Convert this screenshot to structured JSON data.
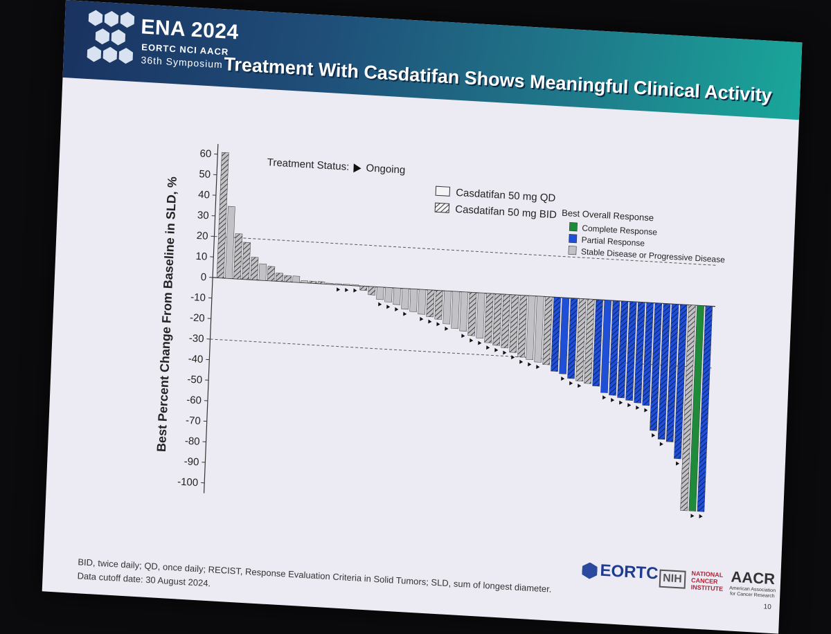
{
  "header": {
    "conference_name": "ENA 2024",
    "conference_orgs": "EORTC  NCI  AACR",
    "symposium": "36th Symposium",
    "slide_title": "Treatment With Casdatifan Shows Meaningful Clinical Activity"
  },
  "footer": {
    "footnote_line1": "BID, twice daily; QD, once daily; RECIST, Response Evaluation Criteria in Solid Tumors; SLD, sum of longest diameter.",
    "footnote_line2": "Data cutoff date: 30 August 2024.",
    "slide_number": "10",
    "logos": {
      "eortc": "EORTC",
      "nih_box": "NIH",
      "nih_line1": "NATIONAL",
      "nih_line2": "CANCER",
      "nih_line3": "INSTITUTE",
      "aacr": "AACR",
      "aacr_sub": "American Association for Cancer Research"
    }
  },
  "colors": {
    "banner_start": "#1a3260",
    "banner_end": "#19a79a",
    "complete": "#1e8a3a",
    "partial": "#1f4fd6",
    "stable": "#c2c2c6"
  },
  "chart_data": {
    "type": "bar",
    "title": "",
    "ylabel": "Best Percent Change From Baseline in SLD, %",
    "xlabel": "",
    "ylim": [
      -105,
      65
    ],
    "yticks": [
      60,
      50,
      40,
      30,
      20,
      10,
      0,
      -10,
      -20,
      -30,
      -40,
      -50,
      -60,
      -70,
      -80,
      -90,
      -100
    ],
    "reference_lines": [
      20,
      -30
    ],
    "grid": false,
    "legend_position": "top-right",
    "treatment_status_label": "Treatment Status:",
    "ongoing_label": "Ongoing",
    "dose_legend": [
      {
        "label": "Casdatifan 50 mg QD",
        "pattern": "solid"
      },
      {
        "label": "Casdatifan 50 mg BID",
        "pattern": "hatched"
      }
    ],
    "response_legend_title": "Best Overall Response",
    "response_legend": [
      {
        "key": "CR",
        "label": "Complete Response",
        "color": "#1e8a3a"
      },
      {
        "key": "PR",
        "label": "Partial Response",
        "color": "#1f4fd6"
      },
      {
        "key": "SD",
        "label": "Stable Disease or Progressive Disease",
        "color": "#c2c2c6"
      }
    ],
    "bars": [
      {
        "value": 61,
        "dose": "BID",
        "response": "SD",
        "ongoing": false
      },
      {
        "value": 35,
        "dose": "QD",
        "response": "SD",
        "ongoing": false
      },
      {
        "value": 22,
        "dose": "BID",
        "response": "SD",
        "ongoing": false
      },
      {
        "value": 18,
        "dose": "BID",
        "response": "SD",
        "ongoing": false
      },
      {
        "value": 11,
        "dose": "BID",
        "response": "SD",
        "ongoing": false
      },
      {
        "value": 8,
        "dose": "QD",
        "response": "SD",
        "ongoing": false
      },
      {
        "value": 7,
        "dose": "BID",
        "response": "SD",
        "ongoing": false
      },
      {
        "value": 4,
        "dose": "BID",
        "response": "SD",
        "ongoing": false
      },
      {
        "value": 3,
        "dose": "BID",
        "response": "SD",
        "ongoing": false
      },
      {
        "value": 3,
        "dose": "QD",
        "response": "SD",
        "ongoing": false
      },
      {
        "value": 1,
        "dose": "QD",
        "response": "SD",
        "ongoing": false
      },
      {
        "value": 1,
        "dose": "BID",
        "response": "SD",
        "ongoing": false
      },
      {
        "value": 1,
        "dose": "BID",
        "response": "SD",
        "ongoing": false
      },
      {
        "value": 0.5,
        "dose": "QD",
        "response": "SD",
        "ongoing": false
      },
      {
        "value": 0.5,
        "dose": "QD",
        "response": "SD",
        "ongoing": true
      },
      {
        "value": 0.5,
        "dose": "QD",
        "response": "SD",
        "ongoing": true
      },
      {
        "value": 0.5,
        "dose": "QD",
        "response": "SD",
        "ongoing": true
      },
      {
        "value": -2,
        "dose": "BID",
        "response": "SD",
        "ongoing": false
      },
      {
        "value": -4,
        "dose": "BID",
        "response": "SD",
        "ongoing": false
      },
      {
        "value": -6,
        "dose": "QD",
        "response": "SD",
        "ongoing": true
      },
      {
        "value": -7,
        "dose": "QD",
        "response": "SD",
        "ongoing": true
      },
      {
        "value": -8,
        "dose": "QD",
        "response": "SD",
        "ongoing": true
      },
      {
        "value": -10,
        "dose": "QD",
        "response": "SD",
        "ongoing": true
      },
      {
        "value": -11,
        "dose": "QD",
        "response": "SD",
        "ongoing": false
      },
      {
        "value": -12,
        "dose": "QD",
        "response": "SD",
        "ongoing": true
      },
      {
        "value": -13,
        "dose": "BID",
        "response": "SD",
        "ongoing": true
      },
      {
        "value": -14,
        "dose": "BID",
        "response": "SD",
        "ongoing": true
      },
      {
        "value": -16,
        "dose": "QD",
        "response": "SD",
        "ongoing": true
      },
      {
        "value": -18,
        "dose": "QD",
        "response": "SD",
        "ongoing": false
      },
      {
        "value": -19,
        "dose": "QD",
        "response": "SD",
        "ongoing": true
      },
      {
        "value": -21,
        "dose": "BID",
        "response": "SD",
        "ongoing": true
      },
      {
        "value": -22,
        "dose": "QD",
        "response": "SD",
        "ongoing": true
      },
      {
        "value": -24,
        "dose": "BID",
        "response": "SD",
        "ongoing": true
      },
      {
        "value": -25,
        "dose": "BID",
        "response": "SD",
        "ongoing": true
      },
      {
        "value": -26,
        "dose": "BID",
        "response": "SD",
        "ongoing": true
      },
      {
        "value": -28,
        "dose": "BID",
        "response": "SD",
        "ongoing": true
      },
      {
        "value": -30,
        "dose": "BID",
        "response": "SD",
        "ongoing": true
      },
      {
        "value": -31,
        "dose": "QD",
        "response": "SD",
        "ongoing": true
      },
      {
        "value": -32,
        "dose": "QD",
        "response": "SD",
        "ongoing": true
      },
      {
        "value": -33,
        "dose": "BID",
        "response": "SD",
        "ongoing": false
      },
      {
        "value": -36,
        "dose": "BID",
        "response": "PR",
        "ongoing": false
      },
      {
        "value": -37,
        "dose": "QD",
        "response": "PR",
        "ongoing": true
      },
      {
        "value": -39,
        "dose": "BID",
        "response": "PR",
        "ongoing": true
      },
      {
        "value": -40,
        "dose": "BID",
        "response": "SD",
        "ongoing": true
      },
      {
        "value": -41,
        "dose": "BID",
        "response": "SD",
        "ongoing": false
      },
      {
        "value": -42,
        "dose": "BID",
        "response": "PR",
        "ongoing": false
      },
      {
        "value": -45,
        "dose": "QD",
        "response": "PR",
        "ongoing": true
      },
      {
        "value": -46,
        "dose": "BID",
        "response": "PR",
        "ongoing": true
      },
      {
        "value": -47,
        "dose": "BID",
        "response": "PR",
        "ongoing": true
      },
      {
        "value": -48,
        "dose": "BID",
        "response": "PR",
        "ongoing": true
      },
      {
        "value": -49,
        "dose": "BID",
        "response": "PR",
        "ongoing": true
      },
      {
        "value": -50,
        "dose": "BID",
        "response": "PR",
        "ongoing": true
      },
      {
        "value": -62,
        "dose": "BID",
        "response": "PR",
        "ongoing": true
      },
      {
        "value": -66,
        "dose": "BID",
        "response": "PR",
        "ongoing": true
      },
      {
        "value": -67,
        "dose": "BID",
        "response": "PR",
        "ongoing": false
      },
      {
        "value": -75,
        "dose": "BID",
        "response": "PR",
        "ongoing": true
      },
      {
        "value": -100,
        "dose": "BID",
        "response": "SD",
        "ongoing": false
      },
      {
        "value": -100,
        "dose": "QD",
        "response": "CR",
        "ongoing": true
      },
      {
        "value": -100,
        "dose": "BID",
        "response": "PR",
        "ongoing": true
      }
    ]
  }
}
